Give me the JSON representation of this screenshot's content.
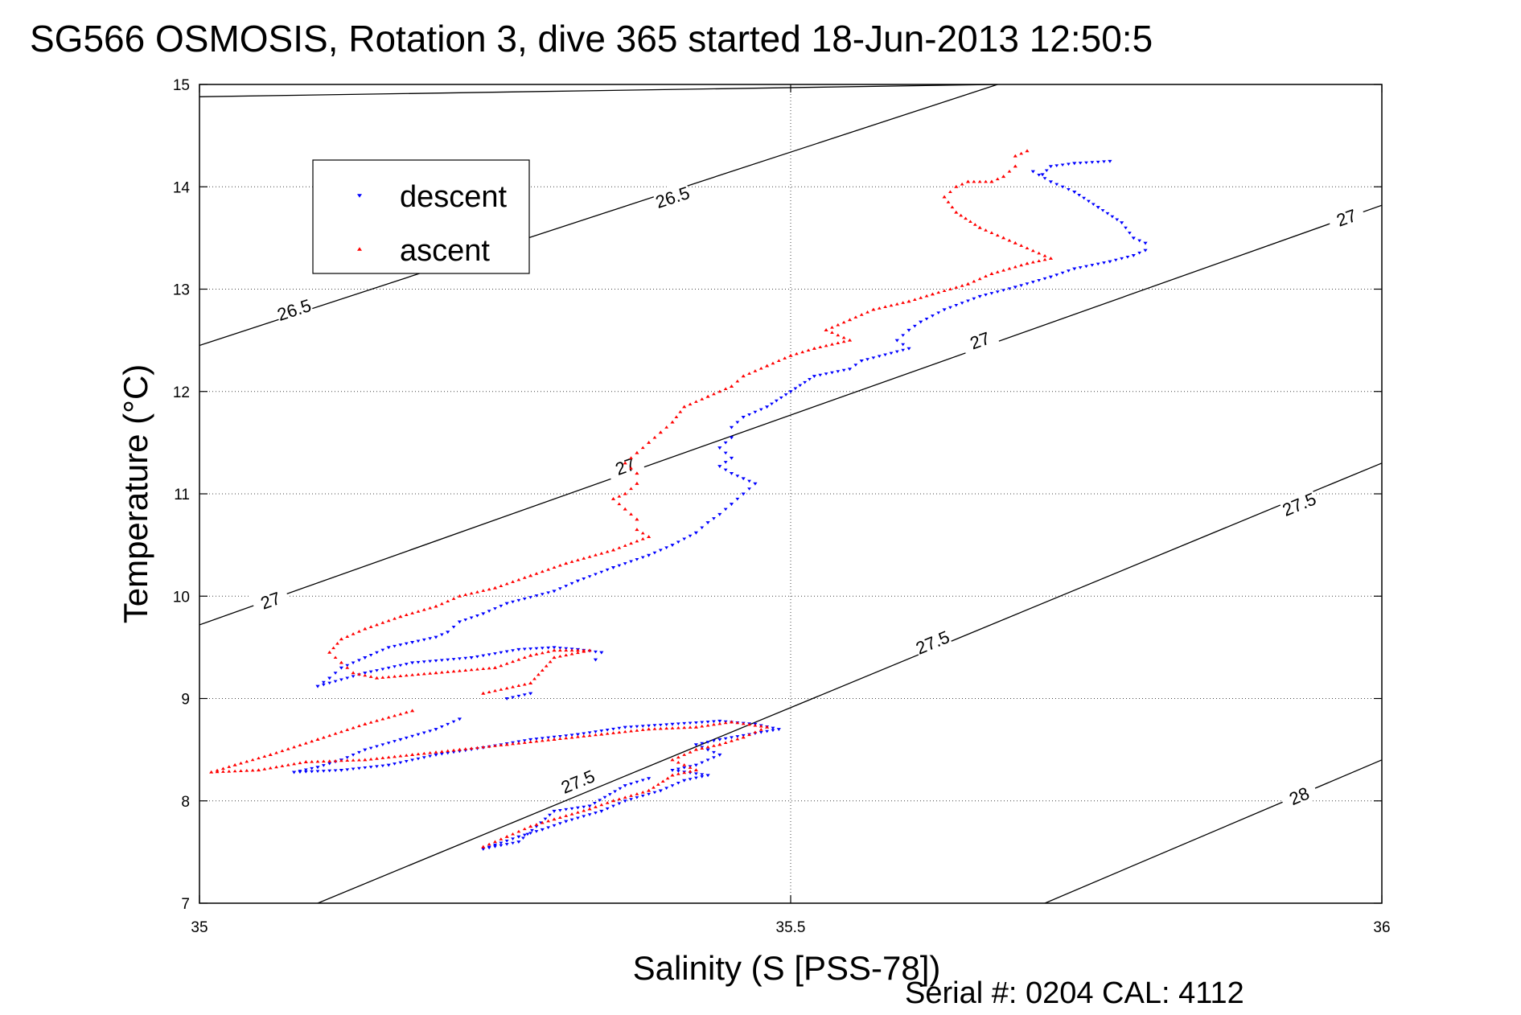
{
  "title": "SG566 OSMOSIS, Rotation 3, dive 365 started 18-Jun-2013 12:50:5",
  "footer": "Serial #: 0204  CAL: 4112",
  "chart_data": {
    "type": "scatter",
    "xlabel": "Salinity (S [PSS-78])",
    "ylabel": "Temperature (°C)",
    "xlim": [
      35,
      36
    ],
    "ylim": [
      7,
      15
    ],
    "x_ticks": [
      "35",
      "35.5",
      "36"
    ],
    "y_ticks": [
      "7",
      "8",
      "9",
      "10",
      "11",
      "12",
      "13",
      "14",
      "15"
    ],
    "grid": true,
    "legend_position": "top-left",
    "legend": [
      {
        "name": "descent",
        "marker": "triangle-down",
        "color": "#0000ff"
      },
      {
        "name": "ascent",
        "marker": "triangle-up",
        "color": "#ff0000"
      }
    ],
    "density_contours": [
      {
        "label": "26.5",
        "lines": [
          [
            [
              35,
              14.88
            ],
            [
              35.675,
              15.0
            ]
          ],
          [
            [
              35,
              12.45
            ],
            [
              35.675,
              15.0
            ]
          ]
        ],
        "label_at": [
          [
            35.08,
            12.8
          ],
          [
            35.4,
            13.9
          ]
        ]
      },
      {
        "label": "27",
        "lines": [
          [
            [
              35,
              9.72
            ],
            [
              36,
              13.82
            ]
          ]
        ],
        "label_at": [
          [
            35.06,
            9.96
          ],
          [
            35.36,
            11.27
          ],
          [
            35.66,
            12.5
          ],
          [
            35.97,
            13.7
          ]
        ]
      },
      {
        "label": "27.5",
        "lines": [
          [
            [
              35.1,
              7.0
            ],
            [
              36,
              11.3
            ]
          ]
        ],
        "label_at": [
          [
            35.32,
            8.19
          ],
          [
            35.62,
            9.55
          ],
          [
            35.93,
            10.9
          ]
        ]
      },
      {
        "label": "28",
        "lines": [
          [
            [
              35.715,
              7.0
            ],
            [
              36,
              8.4
            ]
          ]
        ],
        "label_at": [
          [
            35.93,
            8.05
          ]
        ]
      }
    ],
    "series": [
      {
        "name": "descent",
        "color": "#0000ff",
        "points": [
          [
            35.77,
            14.25
          ],
          [
            35.74,
            14.23
          ],
          [
            35.72,
            14.2
          ],
          [
            35.713,
            14.12
          ],
          [
            35.705,
            14.15
          ],
          [
            35.72,
            14.05
          ],
          [
            35.74,
            13.95
          ],
          [
            35.76,
            13.8
          ],
          [
            35.78,
            13.65
          ],
          [
            35.79,
            13.5
          ],
          [
            35.8,
            13.45
          ],
          [
            35.8,
            13.38
          ],
          [
            35.79,
            13.33
          ],
          [
            35.77,
            13.27
          ],
          [
            35.74,
            13.2
          ],
          [
            35.72,
            13.12
          ],
          [
            35.69,
            13.02
          ],
          [
            35.66,
            12.93
          ],
          [
            35.63,
            12.8
          ],
          [
            35.61,
            12.68
          ],
          [
            35.6,
            12.6
          ],
          [
            35.59,
            12.5
          ],
          [
            35.6,
            12.42
          ],
          [
            35.56,
            12.3
          ],
          [
            35.55,
            12.22
          ],
          [
            35.52,
            12.15
          ],
          [
            35.5,
            12.0
          ],
          [
            35.48,
            11.85
          ],
          [
            35.46,
            11.75
          ],
          [
            35.45,
            11.65
          ],
          [
            35.45,
            11.55
          ],
          [
            35.44,
            11.45
          ],
          [
            35.45,
            11.35
          ],
          [
            35.44,
            11.27
          ],
          [
            35.45,
            11.2
          ],
          [
            35.46,
            11.15
          ],
          [
            35.47,
            11.1
          ],
          [
            35.46,
            11.0
          ],
          [
            35.45,
            10.9
          ],
          [
            35.44,
            10.8
          ],
          [
            35.43,
            10.72
          ],
          [
            35.42,
            10.62
          ],
          [
            35.4,
            10.5
          ],
          [
            35.38,
            10.4
          ],
          [
            35.35,
            10.28
          ],
          [
            35.32,
            10.15
          ],
          [
            35.3,
            10.05
          ],
          [
            35.26,
            9.93
          ],
          [
            35.24,
            9.83
          ],
          [
            35.22,
            9.75
          ],
          [
            35.21,
            9.65
          ],
          [
            35.2,
            9.6
          ],
          [
            35.18,
            9.55
          ],
          [
            35.16,
            9.5
          ],
          [
            35.14,
            9.4
          ],
          [
            35.12,
            9.3
          ],
          [
            35.11,
            9.2
          ],
          [
            35.1,
            9.12
          ],
          [
            35.14,
            9.25
          ],
          [
            35.18,
            9.35
          ],
          [
            35.23,
            9.4
          ],
          [
            35.27,
            9.48
          ],
          [
            35.3,
            9.5
          ],
          [
            35.32,
            9.48
          ],
          [
            35.34,
            9.45
          ],
          [
            35.335,
            9.38
          ],
          [
            35.26,
            9.0
          ],
          [
            35.28,
            9.05
          ],
          [
            35.22,
            8.8
          ],
          [
            35.2,
            8.7
          ],
          [
            35.17,
            8.6
          ],
          [
            35.14,
            8.5
          ],
          [
            35.12,
            8.4
          ],
          [
            35.1,
            8.33
          ],
          [
            35.08,
            8.28
          ],
          [
            35.12,
            8.3
          ],
          [
            35.16,
            8.35
          ],
          [
            35.2,
            8.45
          ],
          [
            35.24,
            8.52
          ],
          [
            35.28,
            8.6
          ],
          [
            35.32,
            8.65
          ],
          [
            35.36,
            8.72
          ],
          [
            35.4,
            8.75
          ],
          [
            35.44,
            8.78
          ],
          [
            35.47,
            8.75
          ],
          [
            35.49,
            8.7
          ],
          [
            35.44,
            8.6
          ],
          [
            35.42,
            8.55
          ],
          [
            35.43,
            8.5
          ],
          [
            35.44,
            8.45
          ],
          [
            35.42,
            8.35
          ],
          [
            35.4,
            8.3
          ],
          [
            35.43,
            8.25
          ],
          [
            35.41,
            8.2
          ],
          [
            35.39,
            8.1
          ],
          [
            35.36,
            8.0
          ],
          [
            35.34,
            7.9
          ],
          [
            35.31,
            7.8
          ],
          [
            35.29,
            7.72
          ],
          [
            35.27,
            7.65
          ],
          [
            35.25,
            7.57
          ],
          [
            35.24,
            7.53
          ],
          [
            35.27,
            7.6
          ],
          [
            35.3,
            7.9
          ],
          [
            35.33,
            7.95
          ],
          [
            35.36,
            8.15
          ],
          [
            35.38,
            8.22
          ]
        ]
      },
      {
        "name": "ascent",
        "color": "#ff0000",
        "points": [
          [
            35.7,
            14.35
          ],
          [
            35.69,
            14.3
          ],
          [
            35.69,
            14.2
          ],
          [
            35.68,
            14.1
          ],
          [
            35.67,
            14.05
          ],
          [
            35.65,
            14.05
          ],
          [
            35.64,
            14.0
          ],
          [
            35.63,
            13.9
          ],
          [
            35.64,
            13.75
          ],
          [
            35.66,
            13.6
          ],
          [
            35.68,
            13.5
          ],
          [
            35.69,
            13.45
          ],
          [
            35.72,
            13.3
          ],
          [
            35.7,
            13.25
          ],
          [
            35.67,
            13.15
          ],
          [
            35.65,
            13.05
          ],
          [
            35.62,
            12.95
          ],
          [
            35.6,
            12.88
          ],
          [
            35.57,
            12.8
          ],
          [
            35.55,
            12.7
          ],
          [
            35.53,
            12.6
          ],
          [
            35.55,
            12.5
          ],
          [
            35.52,
            12.42
          ],
          [
            35.5,
            12.35
          ],
          [
            35.48,
            12.25
          ],
          [
            35.46,
            12.15
          ],
          [
            35.45,
            12.05
          ],
          [
            35.43,
            11.95
          ],
          [
            35.41,
            11.85
          ],
          [
            35.4,
            11.7
          ],
          [
            35.39,
            11.6
          ],
          [
            35.38,
            11.5
          ],
          [
            35.37,
            11.4
          ],
          [
            35.36,
            11.3
          ],
          [
            35.37,
            11.2
          ],
          [
            35.37,
            11.1
          ],
          [
            35.36,
            11.0
          ],
          [
            35.35,
            10.95
          ],
          [
            35.36,
            10.85
          ],
          [
            35.37,
            10.75
          ],
          [
            35.37,
            10.65
          ],
          [
            35.38,
            10.58
          ],
          [
            35.35,
            10.45
          ],
          [
            35.31,
            10.32
          ],
          [
            35.28,
            10.2
          ],
          [
            35.25,
            10.08
          ],
          [
            35.22,
            10.0
          ],
          [
            35.2,
            9.9
          ],
          [
            35.17,
            9.8
          ],
          [
            35.14,
            9.68
          ],
          [
            35.12,
            9.58
          ],
          [
            35.11,
            9.45
          ],
          [
            35.12,
            9.35
          ],
          [
            35.13,
            9.25
          ],
          [
            35.15,
            9.2
          ],
          [
            35.2,
            9.25
          ],
          [
            35.25,
            9.3
          ],
          [
            35.28,
            9.42
          ],
          [
            35.3,
            9.47
          ],
          [
            35.33,
            9.47
          ],
          [
            35.3,
            9.4
          ],
          [
            35.28,
            9.15
          ],
          [
            35.24,
            9.05
          ],
          [
            35.18,
            8.88
          ],
          [
            35.14,
            8.75
          ],
          [
            35.1,
            8.6
          ],
          [
            35.06,
            8.45
          ],
          [
            35.03,
            8.35
          ],
          [
            35.01,
            8.28
          ],
          [
            35.05,
            8.3
          ],
          [
            35.09,
            8.38
          ],
          [
            35.14,
            8.4
          ],
          [
            35.18,
            8.45
          ],
          [
            35.22,
            8.5
          ],
          [
            35.26,
            8.55
          ],
          [
            35.3,
            8.6
          ],
          [
            35.34,
            8.65
          ],
          [
            35.38,
            8.7
          ],
          [
            35.42,
            8.72
          ],
          [
            35.45,
            8.77
          ],
          [
            35.48,
            8.72
          ],
          [
            35.46,
            8.62
          ],
          [
            35.44,
            8.55
          ],
          [
            35.42,
            8.5
          ],
          [
            35.4,
            8.4
          ],
          [
            35.42,
            8.3
          ],
          [
            35.4,
            8.25
          ],
          [
            35.38,
            8.1
          ],
          [
            35.35,
            8.0
          ],
          [
            35.33,
            7.92
          ],
          [
            35.3,
            7.82
          ],
          [
            35.28,
            7.75
          ],
          [
            35.26,
            7.65
          ],
          [
            35.24,
            7.55
          ]
        ]
      }
    ]
  }
}
